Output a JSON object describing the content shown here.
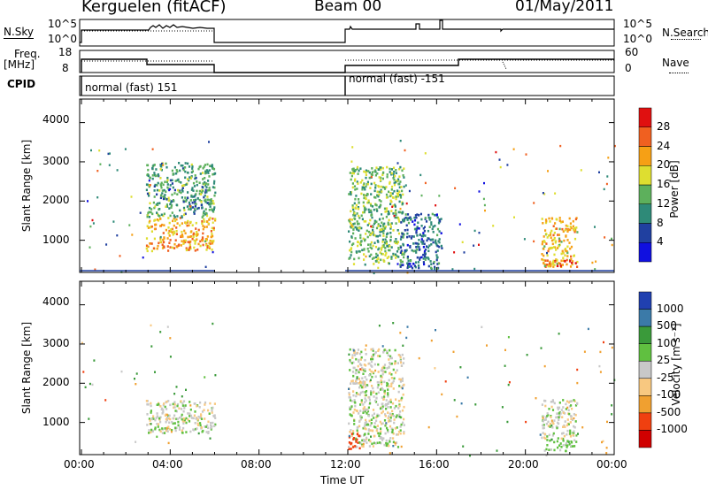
{
  "header": {
    "station": "Kerguelen (fitACF)",
    "beam": "Beam 00",
    "date": "01/May/2011"
  },
  "strip_labels": {
    "nsky": "N.Sky",
    "nsearch": "N.Search",
    "freq_line1": "Freq.",
    "freq_line2": "[MHz]",
    "nave": "Nave",
    "cpid": "CPID",
    "nsky_ticks": [
      "10^5",
      "10^0"
    ],
    "nsearch_ticks": [
      "10^5",
      "10^0"
    ],
    "freq_ticks": [
      "18",
      "8"
    ],
    "nave_ticks": [
      "60",
      "0"
    ]
  },
  "cpid_labels": [
    "normal (fast) 151",
    "normal (fast) -151"
  ],
  "colors": {
    "power": [
      "#1010e0",
      "#2040a0",
      "#2e8a78",
      "#5db05c",
      "#dede30",
      "#f6a015",
      "#f06020",
      "#e01010"
    ],
    "velocity": [
      "#d00000",
      "#f04010",
      "#f0a030",
      "#f8c880",
      "#c8c8c8",
      "#60c040",
      "#3a9a3a",
      "#3b7aa8",
      "#2040b0"
    ]
  },
  "chart_data": [
    {
      "type": "heatmap",
      "title": "Power",
      "ylabel": "Slant Range [km]",
      "xlabel": "Time UT",
      "x_ticks": [
        "00:00",
        "04:00",
        "08:00",
        "12:00",
        "16:00",
        "20:00",
        "00:00"
      ],
      "y_ticks": [
        "1000",
        "2000",
        "3000",
        "4000"
      ],
      "ylim": [
        180,
        4600
      ],
      "xlim_hours": [
        0,
        24
      ],
      "colorbar_label": "Power [dB]",
      "colorbar_ticks": [
        "4",
        "8",
        "12",
        "16",
        "20",
        "24",
        "28"
      ],
      "data_gaps_hours": [
        [
          6,
          12
        ]
      ],
      "echo_regions": [
        {
          "t_start": 2.9,
          "t_end": 6.0,
          "range_km": [
            750,
            1600
          ],
          "power_db": 22
        },
        {
          "t_start": 2.9,
          "t_end": 6.0,
          "range_km": [
            1600,
            3000
          ],
          "power_db": 12
        },
        {
          "t_start": 12.0,
          "t_end": 14.5,
          "range_km": [
            400,
            2900
          ],
          "power_db": 14
        },
        {
          "t_start": 14.3,
          "t_end": 16.2,
          "range_km": [
            300,
            1700
          ],
          "power_db": 8
        },
        {
          "t_start": 20.7,
          "t_end": 22.3,
          "range_km": [
            350,
            1600
          ],
          "power_db": 20
        },
        {
          "t_start": 20.8,
          "t_end": 22.3,
          "range_km": [
            350,
            500
          ],
          "power_db": 26
        }
      ]
    },
    {
      "type": "heatmap",
      "title": "Velocity",
      "ylabel": "Slant Range [km]",
      "xlabel": "Time UT",
      "x_ticks": [
        "00:00",
        "04:00",
        "08:00",
        "12:00",
        "16:00",
        "20:00",
        "00:00"
      ],
      "y_ticks": [
        "1000",
        "2000",
        "3000",
        "4000"
      ],
      "ylim": [
        180,
        4600
      ],
      "xlim_hours": [
        0,
        24
      ],
      "colorbar_label": "Velocity [m s⁻¹]",
      "colorbar_ticks": [
        "1000",
        "500",
        "100",
        "25",
        "-25",
        "-100",
        "-500",
        "-1000"
      ],
      "data_gaps_hours": [
        [
          6,
          12
        ]
      ],
      "echo_regions": [
        {
          "t_start": 2.9,
          "t_end": 6.0,
          "range_km": [
            750,
            1600
          ],
          "velocity": 0
        },
        {
          "t_start": 12.0,
          "t_end": 14.5,
          "range_km": [
            400,
            2900
          ],
          "velocity": 0
        },
        {
          "t_start": 12.0,
          "t_end": 12.5,
          "range_km": [
            350,
            800
          ],
          "velocity": -600
        },
        {
          "t_start": 20.7,
          "t_end": 22.3,
          "range_km": [
            600,
            1600
          ],
          "velocity": 0
        },
        {
          "t_start": 20.8,
          "t_end": 22.3,
          "range_km": [
            300,
            600
          ],
          "velocity": 60
        }
      ]
    }
  ]
}
